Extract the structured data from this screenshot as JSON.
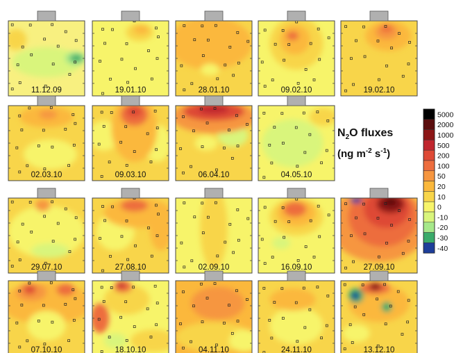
{
  "chart_data": {
    "type": "heatmap",
    "title_parts": {
      "n": "N",
      "sub": "2",
      "rest": "O fluxes",
      "unit_open": "(ng m",
      "unit_sup1": "-2",
      "unit_mid": " s",
      "unit_sup2": "-1",
      "unit_close": ")"
    },
    "colorbar": {
      "levels": [
        "5000",
        "2000",
        "1000",
        "500",
        "200",
        "100",
        "50",
        "20",
        "10",
        "0",
        "-10",
        "-20",
        "-30",
        "-40"
      ],
      "colors": [
        "#000000",
        "#5a0d0d",
        "#8c1616",
        "#c0262e",
        "#de4a36",
        "#ed6d3e",
        "#f6963f",
        "#fbb83c",
        "#f8d54a",
        "#f7f46a",
        "#d9f57c",
        "#a6e88a",
        "#3aab6a",
        "#1d3e9a"
      ]
    },
    "panels": [
      {
        "date": "11.12.09",
        "base": "#f8f080",
        "blobs": [
          [
            0.5,
            0.55,
            0.45,
            0.2,
            "#d9f57c"
          ],
          [
            0.88,
            0.5,
            0.14,
            0.09,
            "#a6e88a"
          ],
          [
            0.89,
            0.5,
            0.08,
            0.05,
            "#3aab6a"
          ],
          [
            0.1,
            0.25,
            0.14,
            0.14,
            "#f8d54a"
          ]
        ]
      },
      {
        "date": "19.01.10",
        "base": "#f7f46a",
        "blobs": [
          [
            0.62,
            0.15,
            0.18,
            0.12,
            "#f8d54a"
          ],
          [
            0.64,
            0.12,
            0.1,
            0.06,
            "#fbb83c"
          ]
        ]
      },
      {
        "date": "28.01.10",
        "base": "#f8d54a",
        "blobs": [
          [
            0.45,
            0.3,
            0.55,
            0.35,
            "#fbb83c"
          ],
          [
            0.45,
            0.65,
            0.12,
            0.08,
            "#f7f46a"
          ]
        ]
      },
      {
        "date": "09.02.10",
        "base": "#f7f46a",
        "blobs": [
          [
            0.5,
            0.3,
            0.35,
            0.35,
            "#f8d54a"
          ],
          [
            0.48,
            0.25,
            0.2,
            0.2,
            "#fbb83c"
          ],
          [
            0.45,
            0.2,
            0.08,
            0.06,
            "#ed6d3e"
          ]
        ]
      },
      {
        "date": "19.02.10",
        "base": "#f8d54a",
        "blobs": [
          [
            0.62,
            0.2,
            0.3,
            0.2,
            "#fbb83c"
          ],
          [
            0.6,
            0.15,
            0.15,
            0.1,
            "#f6963f"
          ],
          [
            0.6,
            0.1,
            0.08,
            0.05,
            "#ed6d3e"
          ]
        ]
      },
      {
        "date": "02.03.10",
        "base": "#f8d54a",
        "blobs": [
          [
            0.55,
            0.65,
            0.35,
            0.2,
            "#f7f46a"
          ],
          [
            0.5,
            0.15,
            0.35,
            0.14,
            "#fbb83c"
          ],
          [
            0.52,
            0.12,
            0.12,
            0.06,
            "#f6963f"
          ]
        ]
      },
      {
        "date": "09.03.10",
        "base": "#f8d54a",
        "blobs": [
          [
            0.15,
            0.4,
            0.2,
            0.2,
            "#f7f46a"
          ],
          [
            0.85,
            0.5,
            0.18,
            0.25,
            "#f7f46a"
          ],
          [
            0.55,
            0.3,
            0.3,
            0.45,
            "#fbb83c"
          ],
          [
            0.55,
            0.12,
            0.18,
            0.15,
            "#ed6d3e"
          ],
          [
            0.55,
            0.08,
            0.1,
            0.07,
            "#de4a36"
          ]
        ]
      },
      {
        "date": "06.04.10",
        "base": "#f8d54a",
        "blobs": [
          [
            0.4,
            0.5,
            0.15,
            0.1,
            "#f7f46a"
          ],
          [
            0.75,
            0.4,
            0.2,
            0.15,
            "#d9f57c"
          ],
          [
            0.5,
            0.15,
            0.55,
            0.22,
            "#f6963f"
          ],
          [
            0.5,
            0.08,
            0.4,
            0.12,
            "#de4a36"
          ],
          [
            0.5,
            0.05,
            0.2,
            0.06,
            "#c0262e"
          ]
        ]
      },
      {
        "date": "04.05.10",
        "base": "#f7f46a",
        "blobs": [
          [
            0.45,
            0.5,
            0.4,
            0.32,
            "#d9f57c"
          ],
          [
            0.85,
            0.15,
            0.18,
            0.12,
            "#f8d54a"
          ]
        ]
      },
      {
        "date": "29.07.10",
        "base": "#f8d54a",
        "blobs": [
          [
            0.5,
            0.45,
            0.5,
            0.35,
            "#f7f46a"
          ],
          [
            0.55,
            0.7,
            0.25,
            0.1,
            "#d9f57c"
          ],
          [
            0.45,
            0.1,
            0.1,
            0.08,
            "#f6963f"
          ]
        ]
      },
      {
        "date": "27.08.10",
        "base": "#f8d54a",
        "blobs": [
          [
            0.3,
            0.45,
            0.25,
            0.25,
            "#f7f46a"
          ],
          [
            0.6,
            0.2,
            0.45,
            0.2,
            "#fbb83c"
          ],
          [
            0.55,
            0.1,
            0.18,
            0.08,
            "#ed6d3e"
          ],
          [
            0.9,
            0.4,
            0.15,
            0.3,
            "#fbb83c"
          ]
        ]
      },
      {
        "date": "02.09.10",
        "base": "#f7f46a",
        "blobs": [
          [
            0.5,
            0.4,
            0.18,
            0.55,
            "#f8d54a"
          ]
        ]
      },
      {
        "date": "16.09.10",
        "base": "#f7f46a",
        "blobs": [
          [
            0.5,
            0.25,
            0.35,
            0.25,
            "#f8d54a"
          ],
          [
            0.5,
            0.2,
            0.25,
            0.18,
            "#fbb83c"
          ],
          [
            0.48,
            0.15,
            0.15,
            0.1,
            "#ed6d3e"
          ],
          [
            0.3,
            0.6,
            0.12,
            0.08,
            "#d9f57c"
          ]
        ]
      },
      {
        "date": "27.09.10",
        "base": "#f8d54a",
        "blobs": [
          [
            0.5,
            0.35,
            0.65,
            0.5,
            "#f6963f"
          ],
          [
            0.55,
            0.25,
            0.45,
            0.4,
            "#ed6d3e"
          ],
          [
            0.6,
            0.15,
            0.3,
            0.25,
            "#de4a36"
          ],
          [
            0.65,
            0.08,
            0.18,
            0.12,
            "#8c1616"
          ],
          [
            0.65,
            0.05,
            0.08,
            0.05,
            "#5a0d0d"
          ],
          [
            0.2,
            0.03,
            0.08,
            0.04,
            "#1d3e9a"
          ]
        ]
      },
      {
        "date": "07.10.10",
        "base": "#f8d54a",
        "blobs": [
          [
            0.5,
            0.3,
            0.6,
            0.28,
            "#fbb83c"
          ],
          [
            0.3,
            0.15,
            0.2,
            0.12,
            "#f6963f"
          ],
          [
            0.28,
            0.12,
            0.08,
            0.06,
            "#de4a36"
          ],
          [
            0.75,
            0.12,
            0.12,
            0.08,
            "#ed6d3e"
          ],
          [
            0.5,
            0.6,
            0.25,
            0.2,
            "#f7f46a"
          ]
        ]
      },
      {
        "date": "18.10.10",
        "base": "#f7f46a",
        "blobs": [
          [
            0.45,
            0.25,
            0.3,
            0.2,
            "#f8d54a"
          ],
          [
            0.4,
            0.08,
            0.12,
            0.08,
            "#ed6d3e"
          ],
          [
            0.38,
            0.06,
            0.05,
            0.04,
            "#c0262e"
          ],
          [
            0.1,
            0.5,
            0.12,
            0.2,
            "#ed6d3e"
          ],
          [
            0.8,
            0.8,
            0.3,
            0.15,
            "#f8d54a"
          ],
          [
            0.3,
            0.8,
            0.15,
            0.1,
            "#d9f57c"
          ]
        ]
      },
      {
        "date": "04.11.10",
        "base": "#fbb83c",
        "blobs": [
          [
            0.55,
            0.3,
            0.35,
            0.22,
            "#f6963f"
          ],
          [
            0.5,
            0.75,
            0.5,
            0.2,
            "#f8d54a"
          ],
          [
            0.9,
            0.8,
            0.2,
            0.15,
            "#f7f46a"
          ]
        ]
      },
      {
        "date": "24.11.10",
        "base": "#f8d54a",
        "blobs": [
          [
            0.5,
            0.6,
            0.35,
            0.25,
            "#f7f46a"
          ],
          [
            0.45,
            0.25,
            0.3,
            0.15,
            "#fbb83c"
          ]
        ]
      },
      {
        "date": "13.12.10",
        "base": "#f8d54a",
        "blobs": [
          [
            0.5,
            0.3,
            0.4,
            0.25,
            "#fbb83c"
          ],
          [
            0.45,
            0.1,
            0.2,
            0.08,
            "#ed6d3e"
          ],
          [
            0.45,
            0.08,
            0.08,
            0.05,
            "#8c1616"
          ],
          [
            0.2,
            0.2,
            0.1,
            0.1,
            "#3aab6a"
          ],
          [
            0.19,
            0.2,
            0.05,
            0.05,
            "#1d3e9a"
          ],
          [
            0.6,
            0.35,
            0.07,
            0.07,
            "#3aab6a"
          ],
          [
            0.2,
            0.7,
            0.18,
            0.12,
            "#f7f46a"
          ]
        ]
      }
    ]
  }
}
